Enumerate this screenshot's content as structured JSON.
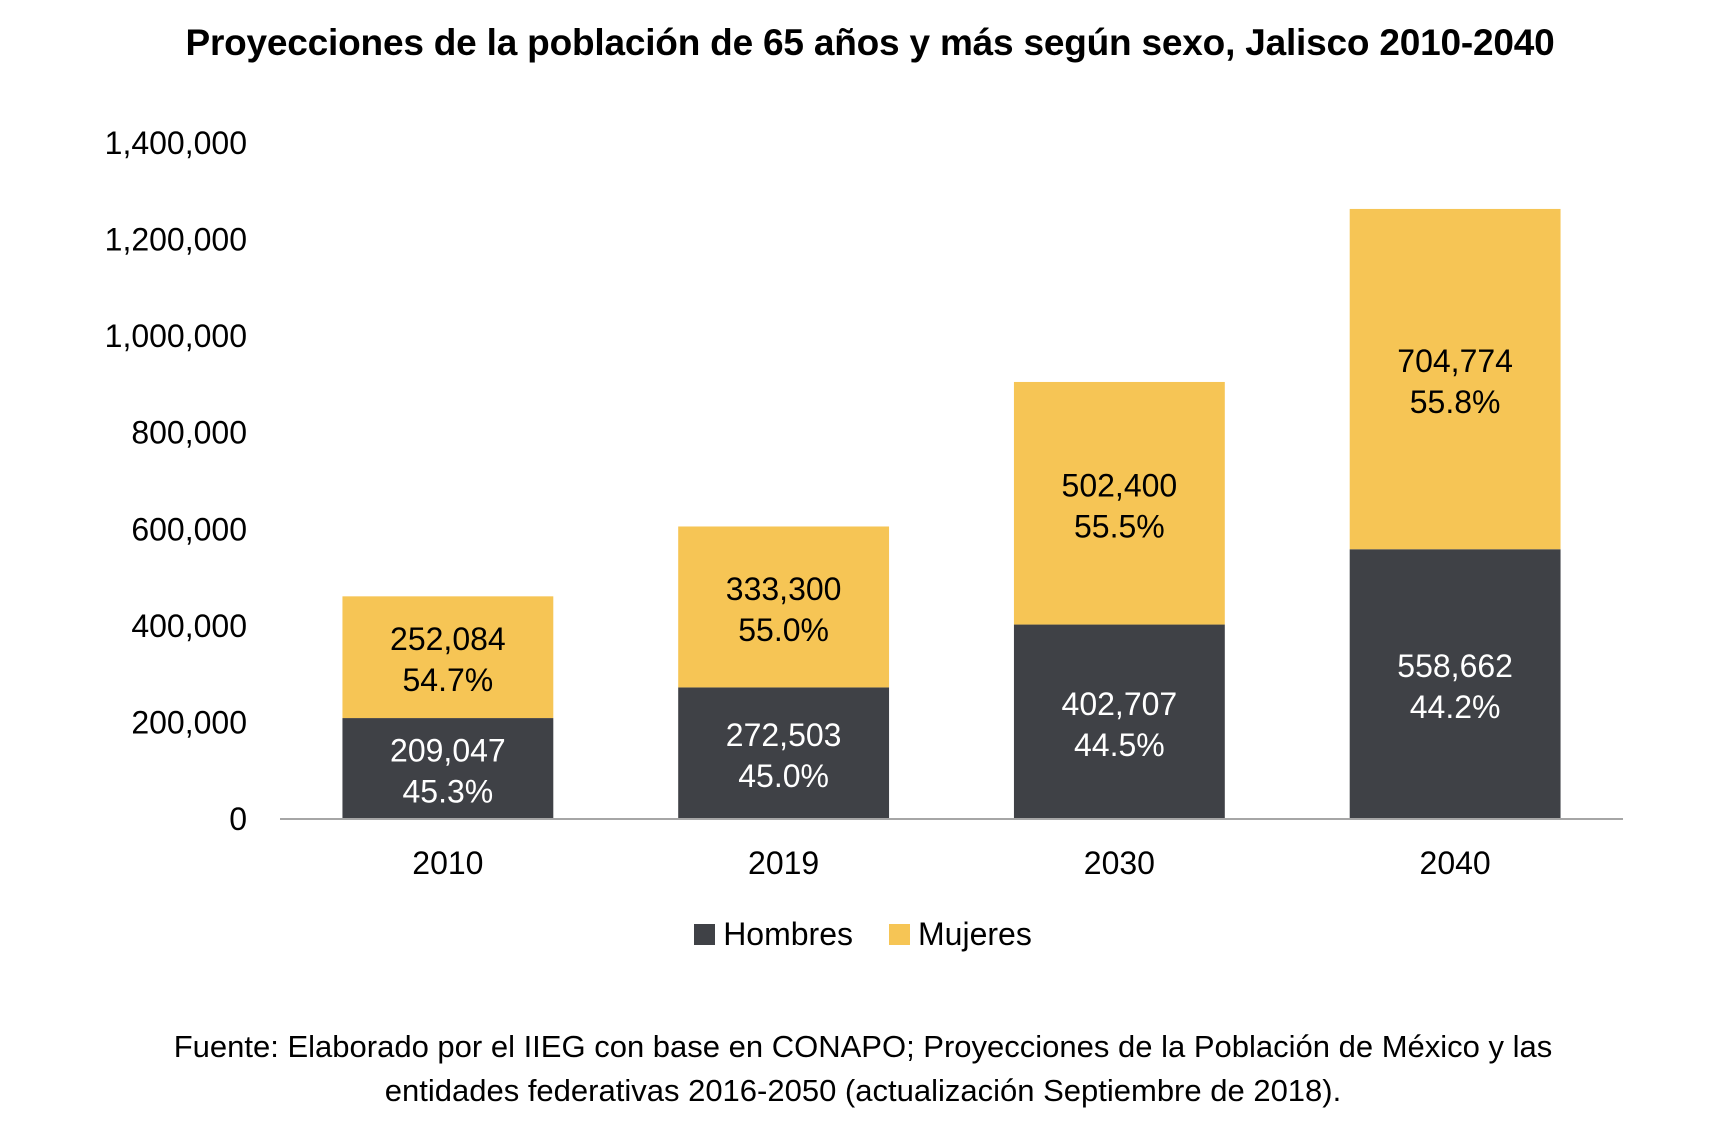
{
  "chart_data": {
    "type": "bar",
    "stacked": true,
    "title": "Proyecciones de la población de 65 años y más según sexo, Jalisco 2010-2040",
    "xlabel": "",
    "ylabel": "",
    "categories": [
      "2010",
      "2019",
      "2030",
      "2040"
    ],
    "series": [
      {
        "name": "Hombres",
        "color": "#3F4146",
        "label_color": "#FFFFFF",
        "values": [
          209047,
          272503,
          402707,
          558662
        ],
        "value_labels": [
          "209,047",
          "272,503",
          "402,707",
          "558,662"
        ],
        "percent_labels": [
          "45.3%",
          "45.0%",
          "44.5%",
          "44.2%"
        ]
      },
      {
        "name": "Mujeres",
        "color": "#F6C555",
        "label_color": "#000000",
        "values": [
          252084,
          333300,
          502400,
          704774
        ],
        "value_labels": [
          "252,084",
          "333,300",
          "502,400",
          "704,774"
        ],
        "percent_labels": [
          "54.7%",
          "55.0%",
          "55.5%",
          "55.8%"
        ]
      }
    ],
    "ylim": [
      0,
      1400000
    ],
    "yticks": [
      0,
      200000,
      400000,
      600000,
      800000,
      1000000,
      1200000,
      1400000
    ],
    "ytick_labels": [
      "0",
      "200,000",
      "400,000",
      "600,000",
      "800,000",
      "1,000,000",
      "1,200,000",
      "1,400,000"
    ],
    "grid": false,
    "legend": {
      "position": "bottom",
      "entries": [
        "Hombres",
        "Mujeres"
      ]
    },
    "axis_color": "#A6A6A6"
  },
  "source_note": {
    "line1": "Fuente: Elaborado por el IIEG con base en CONAPO; Proyecciones de la Población de México y las",
    "line2": "entidades federativas 2016-2050 (actualización Septiembre de 2018)."
  }
}
